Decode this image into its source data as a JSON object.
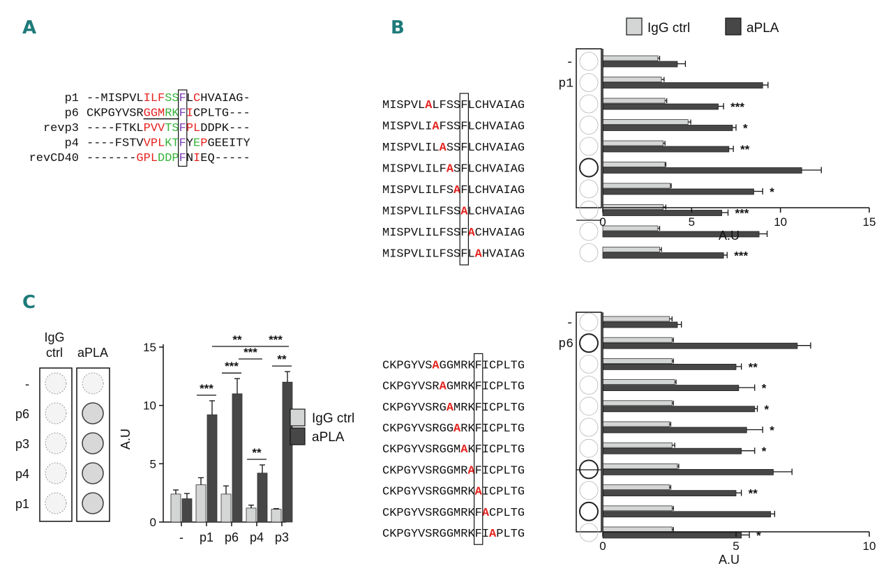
{
  "panel_labels": {
    "a": "A",
    "b": "B",
    "c": "C"
  },
  "colors": {
    "igg": "#d4d6d6",
    "apla": "#474747",
    "mutation": "#e52420",
    "hydrophobic": "#e52420",
    "polar": "#38b33a",
    "anchor": "#7b3fb5",
    "panel_letter": "#1f7a7a"
  },
  "panel_a": {
    "rows": [
      {
        "name": "p1",
        "segments": [
          {
            "t": "--MISPVL",
            "c": ""
          },
          {
            "t": "ILF",
            "c": "r"
          },
          {
            "t": "SS",
            "c": "g"
          },
          {
            "t": "F",
            "c": "p"
          },
          {
            "t": "L",
            "c": ""
          },
          {
            "t": "C",
            "c": "r"
          },
          {
            "t": "HVAIAG-",
            "c": ""
          }
        ]
      },
      {
        "name": "p6",
        "segments": [
          {
            "t": "CKPGYVSR",
            "c": ""
          },
          {
            "t": "GGM",
            "c": "r"
          },
          {
            "t": "RK",
            "c": "g"
          },
          {
            "t": "F",
            "c": "p"
          },
          {
            "t": "I",
            "c": "r"
          },
          {
            "t": "CPLTG---",
            "c": ""
          }
        ]
      },
      {
        "name": "revp3",
        "segments": [
          {
            "t": "----FTKL",
            "c": ""
          },
          {
            "t": "PVV",
            "c": "r"
          },
          {
            "t": "TS",
            "c": "g"
          },
          {
            "t": "F",
            "c": "p"
          },
          {
            "t": "P",
            "c": "r"
          },
          {
            "t": "L",
            "c": "r"
          },
          {
            "t": "DDPK---",
            "c": ""
          }
        ]
      },
      {
        "name": "p4",
        "segments": [
          {
            "t": "----FSTV",
            "c": ""
          },
          {
            "t": "VPL",
            "c": "r"
          },
          {
            "t": "KT",
            "c": "g"
          },
          {
            "t": "F",
            "c": "p"
          },
          {
            "t": "Y",
            "c": ""
          },
          {
            "t": "E",
            "c": "g"
          },
          {
            "t": "P",
            "c": "r"
          },
          {
            "t": "GEEITY",
            "c": ""
          }
        ]
      },
      {
        "name": "revCD40",
        "segments": [
          {
            "t": "-------",
            "c": ""
          },
          {
            "t": "GPL",
            "c": "r"
          },
          {
            "t": "DDP",
            "c": "g"
          },
          {
            "t": "F",
            "c": "p"
          },
          {
            "t": "N",
            "c": ""
          },
          {
            "t": "I",
            "c": "r"
          },
          {
            "t": "EQ-----",
            "c": ""
          }
        ]
      }
    ]
  },
  "panel_b": {
    "legend": {
      "igg": "IgG ctrl",
      "apla": "aPLA"
    },
    "top": {
      "xlabel": "A.U",
      "xlim": [
        0,
        15
      ],
      "xticks": [
        0,
        5,
        10,
        15
      ],
      "rows": [
        {
          "label": "-",
          "seq": "",
          "igg": 3.1,
          "igg_err": 0.1,
          "apla": 4.2,
          "apla_err": 0.45,
          "sig": ""
        },
        {
          "label": "p1",
          "seq": "",
          "igg": 3.3,
          "igg_err": 0.15,
          "apla": 9.0,
          "apla_err": 0.3,
          "sig": ""
        },
        {
          "label": "",
          "seq": "MISPVLALFSSFLCHVAIAG",
          "mut": 6,
          "igg": 3.5,
          "igg_err": 0.1,
          "apla": 6.5,
          "apla_err": 0.3,
          "sig": "***"
        },
        {
          "label": "",
          "seq": "MISPVLIAFSSFLCHVAIAG",
          "mut": 7,
          "igg": 4.8,
          "igg_err": 0.15,
          "apla": 7.3,
          "apla_err": 0.2,
          "sig": "*"
        },
        {
          "label": "",
          "seq": "MISPVLILASSFLCHVAIAG",
          "mut": 8,
          "igg": 3.4,
          "igg_err": 0.1,
          "apla": 7.1,
          "apla_err": 0.25,
          "sig": "**"
        },
        {
          "label": "",
          "seq": "MISPVLILFASFLCHVAIAG",
          "mut": 9,
          "igg": 3.5,
          "igg_err": 0.05,
          "apla": 11.2,
          "apla_err": 1.1,
          "sig": ""
        },
        {
          "label": "",
          "seq": "MISPVLILFSAFLCHVAIAG",
          "mut": 10,
          "igg": 3.8,
          "igg_err": 0.05,
          "apla": 8.5,
          "apla_err": 0.5,
          "sig": "*"
        },
        {
          "label": "",
          "seq": "MISPVLILFSSALCHVAIAG",
          "mut": 11,
          "igg": 3.4,
          "igg_err": 0.15,
          "apla": 6.7,
          "apla_err": 0.35,
          "sig": "***"
        },
        {
          "label": "",
          "seq": "MISPVLILFSSFACHVAIAG",
          "mut": 12,
          "igg": 3.1,
          "igg_err": 0.1,
          "apla": 8.8,
          "apla_err": 0.45,
          "sig": ""
        },
        {
          "label": "",
          "seq": "MISPVLILFSSFLAHVAIAG",
          "mut": 13,
          "igg": 3.2,
          "igg_err": 0.1,
          "apla": 6.8,
          "apla_err": 0.2,
          "sig": "***"
        }
      ]
    },
    "bottom": {
      "xlabel": "A.U",
      "xlim": [
        0,
        10
      ],
      "xticks": [
        0,
        5,
        10
      ],
      "rows": [
        {
          "label": "-",
          "seq": "",
          "igg": 2.5,
          "igg_err": 0.1,
          "apla": 2.8,
          "apla_err": 0.15,
          "sig": ""
        },
        {
          "label": "p6",
          "seq": "",
          "igg": 2.6,
          "igg_err": 0.05,
          "apla": 7.3,
          "apla_err": 0.5,
          "sig": ""
        },
        {
          "label": "",
          "seq": "CKPGYVSAGGMRKFICPLTG",
          "mut": 7,
          "igg": 2.6,
          "igg_err": 0.05,
          "apla": 5.0,
          "apla_err": 0.2,
          "sig": "**"
        },
        {
          "label": "",
          "seq": "CKPGYVSRAGMRKFICPLTG",
          "mut": 8,
          "igg": 2.7,
          "igg_err": 0.05,
          "apla": 5.1,
          "apla_err": 0.6,
          "sig": "*"
        },
        {
          "label": "",
          "seq": "CKPGYVSRGAMRKFICPLTG",
          "mut": 9,
          "igg": 2.6,
          "igg_err": 0.05,
          "apla": 5.7,
          "apla_err": 0.1,
          "sig": "*"
        },
        {
          "label": "",
          "seq": "CKPGYVSRGGARKFICPLTG",
          "mut": 10,
          "igg": 2.5,
          "igg_err": 0.05,
          "apla": 5.4,
          "apla_err": 0.6,
          "sig": "*"
        },
        {
          "label": "",
          "seq": "CKPGYVSRGGMAKFICPLTG",
          "mut": 11,
          "igg": 2.6,
          "igg_err": 0.1,
          "apla": 5.2,
          "apla_err": 0.5,
          "sig": "*"
        },
        {
          "label": "",
          "seq": "CKPGYVSRGGMRAFICPLTG",
          "mut": 12,
          "igg": 2.8,
          "igg_err": 0.05,
          "apla": 6.4,
          "apla_err": 0.7,
          "sig": ""
        },
        {
          "label": "",
          "seq": "CKPGYVSRGGMRKAICPLTG",
          "mut": 13,
          "igg": 2.5,
          "igg_err": 0.05,
          "apla": 5.0,
          "apla_err": 0.2,
          "sig": "**"
        },
        {
          "label": "",
          "seq": "CKPGYVSRGGMRKFACPLTG",
          "mut": 14,
          "igg": 2.6,
          "igg_err": 0.05,
          "apla": 6.3,
          "apla_err": 0.15,
          "sig": ""
        },
        {
          "label": "",
          "seq": "CKPGYVSRGGMRKFIAPLTG",
          "mut": 15,
          "igg": 2.6,
          "igg_err": 0.05,
          "apla": 5.2,
          "apla_err": 0.3,
          "sig": "*"
        }
      ]
    }
  },
  "panel_c": {
    "well_headers": {
      "igg": "IgG\nctrl",
      "apla": "aPLA"
    },
    "well_rows": [
      "-",
      "p6",
      "p3",
      "p4",
      "p1"
    ],
    "legend": {
      "igg": "IgG ctrl",
      "apla": "aPLA"
    },
    "chart_data": {
      "type": "bar",
      "categories": [
        "-",
        "p1",
        "p6",
        "p4",
        "p3"
      ],
      "series": [
        {
          "name": "IgG ctrl",
          "values": [
            2.4,
            3.2,
            2.4,
            1.2,
            1.1
          ],
          "errors": [
            0.35,
            0.6,
            0.7,
            0.25,
            0.05
          ]
        },
        {
          "name": "aPLA",
          "values": [
            2.0,
            9.2,
            11.0,
            4.2,
            12.0
          ],
          "errors": [
            0.45,
            1.2,
            1.3,
            0.7,
            0.9
          ]
        }
      ],
      "ylabel": "A.U",
      "ylim": [
        0,
        15
      ],
      "yticks": [
        0,
        5,
        10,
        15
      ],
      "significance": [
        {
          "category": "p1",
          "text": "***"
        },
        {
          "category": "p6",
          "text": "***"
        },
        {
          "category": "p4",
          "text": "**"
        },
        {
          "category": "p3",
          "text": "**"
        },
        {
          "from": "p1",
          "to": "p4",
          "text": "**"
        },
        {
          "from": "p6",
          "to": "p4",
          "text": "***"
        },
        {
          "from": "p4",
          "to": "p3",
          "text": "***"
        }
      ]
    }
  }
}
